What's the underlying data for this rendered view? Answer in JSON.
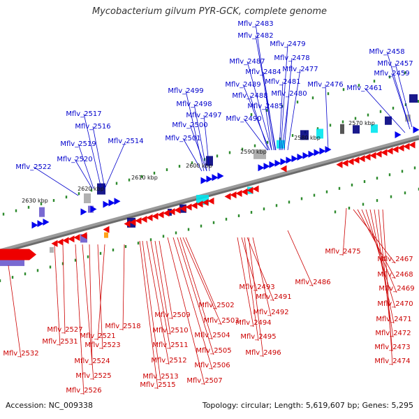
{
  "title": "Mycobacterium gilvum PYR-GCK, complete genome",
  "footer": {
    "accession": "Accession: NC_009338",
    "topology": "Topology: circular; Length: 5,619,607 bp; Genes: 5,295"
  },
  "colors": {
    "forward_gene": "#0000ee",
    "reverse_gene": "#ee0000",
    "forward_label": "#0000cc",
    "reverse_label": "#cc0000",
    "backbone": "#7f7f7f",
    "tick": "#2e8b2e",
    "cog_cyan": "#00e5ee",
    "cog_navy": "#000080",
    "cog_gray": "#a9a9a9",
    "cog_purple": "#6a5acd",
    "cog_orange": "#ff9900"
  },
  "kbp_markers": [
    "2570 kbp",
    "2580 kbp",
    "2590 kbp",
    "2600 kbp",
    "2610 kbp",
    "2620 kbp",
    "2630 kbp"
  ],
  "forward_labels": [
    "Mflv_2483",
    "Mflv_2482",
    "Mflv_2479",
    "Mflv_2478",
    "Mflv_2487",
    "Mflv_2484",
    "Mflv_2477",
    "Mflv_2489",
    "Mflv_2481",
    "Mflv_2476",
    "Mflv_2488",
    "Mflv_2480",
    "Mflv_2485",
    "Mflv_2490",
    "Mflv_2458",
    "Mflv_2457",
    "Mflv_2459",
    "Mflv_2461",
    "Mflv_2499",
    "Mflv_2498",
    "Mflv_2497",
    "Mflv_2500",
    "Mflv_2501",
    "Mflv_2517",
    "Mflv_2516",
    "Mflv_2519",
    "Mflv_2514",
    "Mflv_2520",
    "Mflv_2522"
  ],
  "reverse_labels": [
    "Mflv_2475",
    "Mflv_2467",
    "Mflv_2468",
    "Mflv_2469",
    "Mflv_2470",
    "Mflv_2471",
    "Mflv_2472",
    "Mflv_2473",
    "Mflv_2474",
    "Mflv_2486",
    "Mflv_2493",
    "Mflv_2491",
    "Mflv_2492",
    "Mflv_2494",
    "Mflv_2495",
    "Mflv_2496",
    "Mflv_2502",
    "Mflv_2503",
    "Mflv_2504",
    "Mflv_2505",
    "Mflv_2506",
    "Mflv_2507",
    "Mflv_2509",
    "Mflv_2510",
    "Mflv_2511",
    "Mflv_2512",
    "Mflv_2513",
    "Mflv_2515",
    "Mflv_2518",
    "Mflv_2521",
    "Mflv_2523",
    "Mflv_2524",
    "Mflv_2525",
    "Mflv_2526",
    "Mflv_2527",
    "Mflv_2531",
    "Mflv_2532"
  ]
}
